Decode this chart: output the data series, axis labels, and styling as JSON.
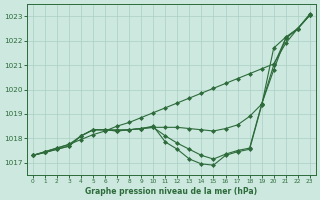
{
  "xlabel": "Graphe pression niveau de la mer (hPa)",
  "bg_color": "#cce8df",
  "grid_color": "#aacfc4",
  "line_color": "#2d6b3a",
  "x": [
    0,
    1,
    2,
    3,
    4,
    5,
    6,
    7,
    8,
    9,
    10,
    11,
    12,
    13,
    14,
    15,
    16,
    17,
    18,
    19,
    20,
    21,
    22,
    23
  ],
  "line1": [
    1017.3,
    1017.45,
    1017.6,
    1017.75,
    1017.95,
    1018.15,
    1018.3,
    1018.5,
    1018.65,
    1018.85,
    1019.05,
    1019.25,
    1019.45,
    1019.65,
    1019.85,
    1020.05,
    1020.25,
    1020.45,
    1020.65,
    1020.85,
    1021.05,
    1021.9,
    1022.5,
    1023.1
  ],
  "line2": [
    1017.3,
    1017.45,
    1017.6,
    1017.75,
    1018.1,
    1018.35,
    1018.35,
    1018.35,
    1018.35,
    1018.4,
    1018.45,
    1018.45,
    1018.45,
    1018.4,
    1018.35,
    1018.3,
    1018.4,
    1018.55,
    1018.9,
    1019.4,
    1020.8,
    1022.1,
    1022.5,
    1023.05
  ],
  "line3": [
    1017.3,
    1017.42,
    1017.55,
    1017.68,
    1018.1,
    1018.35,
    1018.35,
    1018.3,
    1018.35,
    1018.4,
    1018.45,
    1018.1,
    1017.8,
    1017.55,
    1017.3,
    1017.15,
    1017.35,
    1017.5,
    1017.6,
    1019.4,
    1021.0,
    1022.1,
    1022.5,
    1023.05
  ],
  "line4": [
    1017.3,
    1017.42,
    1017.55,
    1017.68,
    1018.1,
    1018.35,
    1018.35,
    1018.3,
    1018.35,
    1018.4,
    1018.5,
    1017.85,
    1017.55,
    1017.15,
    1016.95,
    1016.9,
    1017.3,
    1017.45,
    1017.55,
    1019.35,
    1021.7,
    1022.15,
    1022.5,
    1023.05
  ],
  "ylim": [
    1016.5,
    1023.5
  ],
  "yticks": [
    1017,
    1018,
    1019,
    1020,
    1021,
    1022,
    1023
  ],
  "xticks": [
    0,
    1,
    2,
    3,
    4,
    5,
    6,
    7,
    8,
    9,
    10,
    11,
    12,
    13,
    14,
    15,
    16,
    17,
    18,
    19,
    20,
    21,
    22,
    23
  ],
  "markersize": 2.0,
  "linewidth": 0.8
}
